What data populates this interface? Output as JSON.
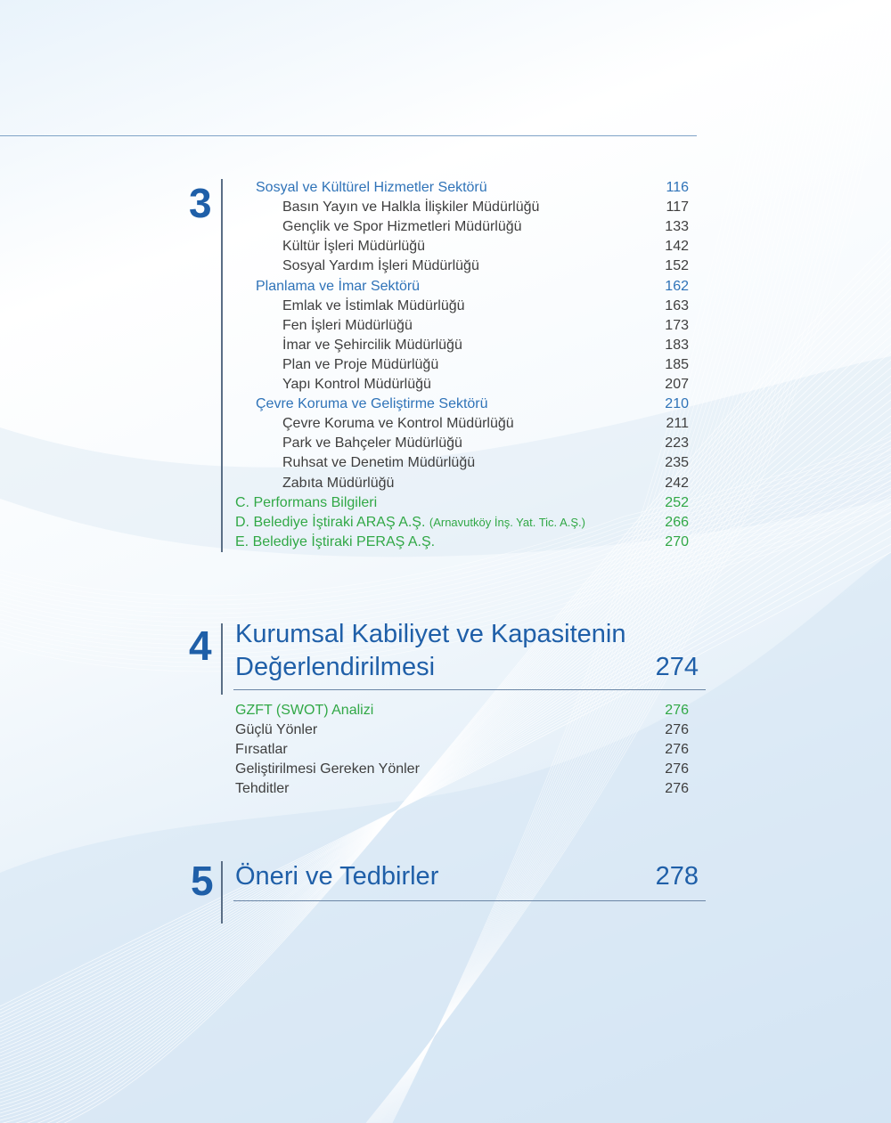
{
  "colors": {
    "heading_blue": "#1f5fa8",
    "link_blue": "#2f73b8",
    "green": "#31a846",
    "text_gray": "#3e3e3e"
  },
  "section3": {
    "number": "3",
    "entries": [
      {
        "label": "Sosyal ve Kültürel Hizmetler Sektörü",
        "page": "116",
        "style": "blue",
        "indent": 1
      },
      {
        "label": "Basın Yayın ve Halkla İlişkiler Müdürlüğü",
        "page": "117",
        "style": "gray",
        "indent": 2
      },
      {
        "label": "Gençlik ve Spor Hizmetleri Müdürlüğü",
        "page": "133",
        "style": "gray",
        "indent": 2
      },
      {
        "label": "Kültür İşleri Müdürlüğü",
        "page": "142",
        "style": "gray",
        "indent": 2
      },
      {
        "label": "Sosyal Yardım İşleri Müdürlüğü",
        "page": "152",
        "style": "gray",
        "indent": 2
      },
      {
        "label": "Planlama ve İmar Sektörü",
        "page": "162",
        "style": "blue",
        "indent": 1
      },
      {
        "label": "Emlak ve İstimlak Müdürlüğü",
        "page": "163",
        "style": "gray",
        "indent": 2
      },
      {
        "label": "Fen İşleri Müdürlüğü",
        "page": "173",
        "style": "gray",
        "indent": 2
      },
      {
        "label": "İmar ve Şehircilik Müdürlüğü",
        "page": "183",
        "style": "gray",
        "indent": 2
      },
      {
        "label": "Plan ve Proje Müdürlüğü",
        "page": "185",
        "style": "gray",
        "indent": 2
      },
      {
        "label": "Yapı Kontrol Müdürlüğü",
        "page": "207",
        "style": "gray",
        "indent": 2
      },
      {
        "label": "Çevre Koruma ve Geliştirme Sektörü",
        "page": "210",
        "style": "blue",
        "indent": 1
      },
      {
        "label": "Çevre Koruma ve Kontrol Müdürlüğü",
        "page": "211",
        "style": "gray",
        "indent": 2
      },
      {
        "label": "Park ve Bahçeler Müdürlüğü",
        "page": "223",
        "style": "gray",
        "indent": 2
      },
      {
        "label": "Ruhsat ve Denetim Müdürlüğü",
        "page": "235",
        "style": "gray",
        "indent": 2
      },
      {
        "label": "Zabıta Müdürlüğü",
        "page": "242",
        "style": "gray",
        "indent": 2
      },
      {
        "label": "C. Performans Bilgileri",
        "page": "252",
        "style": "green",
        "indent": 0
      },
      {
        "label": "D. Belediye İştiraki ARAŞ A.Ş.",
        "note": "(Arnavutköy İnş. Yat. Tic. A.Ş.)",
        "page": "266",
        "style": "green",
        "indent": 0
      },
      {
        "label": "E. Belediye İştiraki PERAŞ A.Ş.",
        "page": "270",
        "style": "green",
        "indent": 0
      }
    ]
  },
  "section4": {
    "number": "4",
    "title_line1": "Kurumsal Kabiliyet ve Kapasitenin",
    "title_line2": "Değerlendirilmesi",
    "page": "274",
    "entries": [
      {
        "label": "GZFT (SWOT) Analizi",
        "page": "276",
        "style": "green"
      },
      {
        "label": "Güçlü Yönler",
        "page": "276",
        "style": "gray"
      },
      {
        "label": "Fırsatlar",
        "page": "276",
        "style": "gray"
      },
      {
        "label": "Geliştirilmesi Gereken Yönler",
        "page": "276",
        "style": "gray"
      },
      {
        "label": "Tehditler",
        "page": "276",
        "style": "gray"
      }
    ]
  },
  "section5": {
    "number": "5",
    "title": "Öneri ve Tedbirler",
    "page": "278"
  }
}
